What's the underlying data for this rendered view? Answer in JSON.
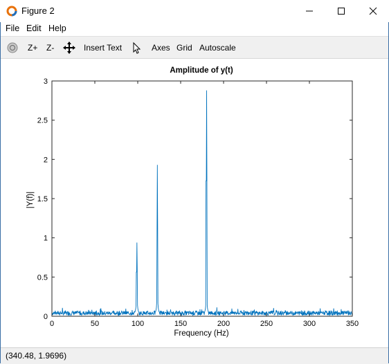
{
  "window": {
    "title": "Figure 2"
  },
  "menu": {
    "file": "File",
    "edit": "Edit",
    "help": "Help"
  },
  "toolbar": {
    "zoom_in": "Z+",
    "zoom_out": "Z-",
    "insert_text": "Insert Text",
    "axes": "Axes",
    "grid": "Grid",
    "autoscale": "Autoscale"
  },
  "status": {
    "coordinates": "(340.48, 1.9696)"
  },
  "chart_data": {
    "type": "line",
    "title": "Amplitude of y(t)",
    "xlabel": "Frequency (Hz)",
    "ylabel": "|Y(f)|",
    "xlim": [
      0,
      350
    ],
    "ylim": [
      0,
      3
    ],
    "xticks": [
      0,
      50,
      100,
      150,
      200,
      250,
      300,
      350
    ],
    "yticks": [
      0,
      0.5,
      1,
      1.5,
      2,
      2.5,
      3
    ],
    "ytick_labels": [
      "0",
      "0.5",
      "1",
      "1.5",
      "2",
      "2.5",
      "3"
    ],
    "line_color": "#0072bd",
    "peaks": [
      {
        "x": 98.9,
        "y": 0.94
      },
      {
        "x": 122.8,
        "y": 1.93
      },
      {
        "x": 180.1,
        "y": 2.88
      }
    ],
    "noise_floor": 0.04
  }
}
